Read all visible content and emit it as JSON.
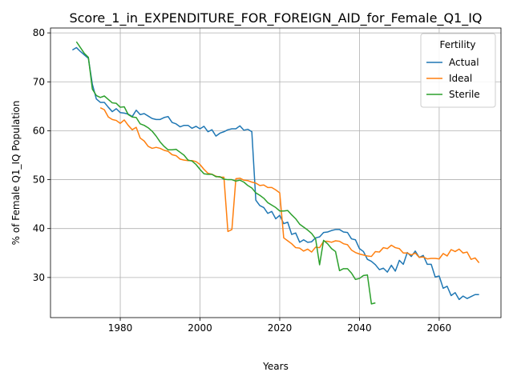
{
  "chart_data": {
    "type": "line",
    "title": "Score_1_in_EXPENDITURE_FOR_FOREIGN_AID_for_Female_Q1_IQ",
    "xlabel": "Years",
    "ylabel": "% of Female Q1_IQ Population",
    "xlim": [
      1962.5,
      2075.5
    ],
    "ylim": [
      21.8,
      81.0
    ],
    "x_ticks": [
      1980,
      2000,
      2020,
      2040,
      2060
    ],
    "y_ticks": [
      30,
      40,
      50,
      60,
      70,
      80
    ],
    "grid": true,
    "legend": {
      "title": "Fertility",
      "placement": "top-right"
    },
    "series": [
      {
        "name": "Actual",
        "color": "#1f77b4",
        "x": [
          1968,
          1969,
          1970,
          1971,
          1972,
          1973,
          1974,
          1975,
          1976,
          1977,
          1978,
          1979,
          1980,
          1981,
          1982,
          1983,
          1984,
          1985,
          1986,
          1987,
          1988,
          1989,
          1990,
          1991,
          1992,
          1993,
          1994,
          1995,
          1996,
          1997,
          1998,
          1999,
          2000,
          2001,
          2002,
          2003,
          2004,
          2005,
          2006,
          2007,
          2008,
          2009,
          2010,
          2011,
          2012,
          2013,
          2014,
          2015,
          2016,
          2017,
          2018,
          2019,
          2020,
          2021,
          2022,
          2023,
          2024,
          2025,
          2026,
          2027,
          2028,
          2029,
          2030,
          2031,
          2032,
          2033,
          2034,
          2035,
          2036,
          2037,
          2038,
          2039,
          2040,
          2041,
          2042,
          2043,
          2044,
          2045,
          2046,
          2047,
          2048,
          2049,
          2050,
          2051,
          2052,
          2053,
          2054,
          2055,
          2056,
          2057,
          2058,
          2059,
          2060,
          2061,
          2062,
          2063,
          2064,
          2065,
          2066,
          2067,
          2068,
          2069,
          2070
        ],
        "y": [
          76.5,
          77.0,
          76.2,
          75.5,
          74.8,
          69.5,
          66.5,
          65.8,
          65.8,
          64.8,
          63.9,
          64.5,
          63.7,
          63.6,
          63.4,
          62.9,
          64.2,
          63.3,
          63.5,
          63.0,
          62.5,
          62.3,
          62.3,
          62.7,
          62.9,
          61.7,
          61.4,
          60.8,
          61.1,
          61.1,
          60.5,
          60.9,
          60.4,
          60.9,
          59.8,
          60.2,
          58.9,
          59.5,
          59.8,
          60.2,
          60.4,
          60.4,
          61.0,
          60.1,
          60.3,
          59.8,
          45.8,
          44.7,
          44.3,
          43.1,
          43.5,
          42.0,
          42.7,
          41.0,
          41.3,
          38.8,
          39.1,
          37.2,
          37.7,
          37.2,
          37.3,
          38.1,
          38.3,
          39.2,
          39.3,
          39.6,
          39.8,
          39.8,
          39.3,
          39.2,
          37.9,
          37.7,
          35.9,
          35.3,
          33.7,
          33.3,
          32.6,
          31.6,
          31.9,
          31.1,
          32.5,
          31.3,
          33.5,
          32.7,
          35.1,
          34.3,
          35.4,
          34.1,
          34.5,
          32.7,
          32.7,
          30.1,
          30.3,
          27.8,
          28.2,
          26.3,
          26.9,
          25.5,
          26.2,
          25.7,
          26.1,
          26.5,
          26.5
        ]
      },
      {
        "name": "Ideal",
        "color": "#ff7f0e",
        "x": [
          1975,
          1976,
          1977,
          1978,
          1979,
          1980,
          1981,
          1982,
          1983,
          1984,
          1985,
          1986,
          1987,
          1988,
          1989,
          1990,
          1991,
          1992,
          1993,
          1994,
          1995,
          1996,
          1997,
          1998,
          1999,
          2000,
          2001,
          2002,
          2003,
          2004,
          2005,
          2006,
          2007,
          2008,
          2009,
          2010,
          2011,
          2012,
          2013,
          2014,
          2015,
          2016,
          2017,
          2018,
          2019,
          2020,
          2021,
          2022,
          2023,
          2024,
          2025,
          2026,
          2027,
          2028,
          2029,
          2030,
          2031,
          2032,
          2033,
          2034,
          2035,
          2036,
          2037,
          2038,
          2039,
          2040,
          2041,
          2042,
          2043,
          2044,
          2045,
          2046,
          2047,
          2048,
          2049,
          2050,
          2051,
          2052,
          2053,
          2054,
          2055,
          2056,
          2057,
          2058,
          2059,
          2060,
          2061,
          2062,
          2063,
          2064,
          2065,
          2066,
          2067,
          2068,
          2069,
          2070
        ],
        "y": [
          64.7,
          64.3,
          62.8,
          62.3,
          62.1,
          61.5,
          62.2,
          61.1,
          60.2,
          60.7,
          58.5,
          57.9,
          56.8,
          56.4,
          56.6,
          56.4,
          56.0,
          55.8,
          55.1,
          54.9,
          54.2,
          54.0,
          53.9,
          53.9,
          53.7,
          53.1,
          52.1,
          51.3,
          51.1,
          50.7,
          50.5,
          50.5,
          39.4,
          39.8,
          50.2,
          50.3,
          49.9,
          49.8,
          49.5,
          49.3,
          48.8,
          48.9,
          48.4,
          48.4,
          47.9,
          47.3,
          38.1,
          37.5,
          36.9,
          36.1,
          36.0,
          35.4,
          35.8,
          35.2,
          36.2,
          36.1,
          37.4,
          37.4,
          37.2,
          37.5,
          37.4,
          36.9,
          36.7,
          35.6,
          35.1,
          34.8,
          34.6,
          34.4,
          34.3,
          35.3,
          35.2,
          36.1,
          35.9,
          36.6,
          36.1,
          35.9,
          35.0,
          35.0,
          34.6,
          35.0,
          34.1,
          34.2,
          33.8,
          33.9,
          33.9,
          33.8,
          34.9,
          34.4,
          35.7,
          35.3,
          35.8,
          35.0,
          35.2,
          33.7,
          34.0,
          33.0
        ]
      },
      {
        "name": "Sterile",
        "color": "#2ca02c",
        "x": [
          1969,
          1970,
          1971,
          1972,
          1973,
          1974,
          1975,
          1976,
          1977,
          1978,
          1979,
          1980,
          1981,
          1982,
          1983,
          1984,
          1985,
          1986,
          1987,
          1988,
          1989,
          1990,
          1991,
          1992,
          1993,
          1994,
          1995,
          1996,
          1997,
          1998,
          1999,
          2000,
          2001,
          2002,
          2003,
          2004,
          2005,
          2006,
          2007,
          2008,
          2009,
          2010,
          2011,
          2012,
          2013,
          2014,
          2015,
          2016,
          2017,
          2018,
          2019,
          2020,
          2021,
          2022,
          2023,
          2024,
          2025,
          2026,
          2027,
          2028,
          2029,
          2030,
          2031,
          2032,
          2033,
          2034,
          2035,
          2036,
          2037,
          2038,
          2039,
          2040,
          2041,
          2042,
          2043,
          2044
        ],
        "y": [
          78.2,
          77.0,
          75.8,
          75.0,
          68.5,
          67.2,
          66.8,
          67.1,
          66.4,
          65.7,
          65.6,
          64.8,
          64.9,
          63.3,
          62.8,
          62.7,
          61.4,
          61.1,
          60.6,
          59.9,
          58.9,
          57.7,
          56.8,
          56.1,
          56.1,
          56.2,
          55.6,
          55.0,
          54.0,
          53.8,
          53.1,
          52.1,
          51.2,
          51.1,
          51.1,
          50.6,
          50.6,
          50.1,
          50.0,
          50.0,
          49.7,
          49.9,
          49.5,
          48.8,
          48.3,
          47.3,
          46.8,
          46.2,
          45.3,
          44.8,
          44.3,
          43.6,
          43.6,
          43.7,
          42.8,
          42.0,
          40.9,
          40.3,
          39.7,
          39.0,
          37.9,
          32.6,
          37.6,
          36.9,
          35.9,
          35.3,
          31.4,
          31.8,
          31.8,
          30.9,
          29.6,
          29.8,
          30.4,
          30.5,
          24.6,
          24.8
        ]
      }
    ]
  }
}
